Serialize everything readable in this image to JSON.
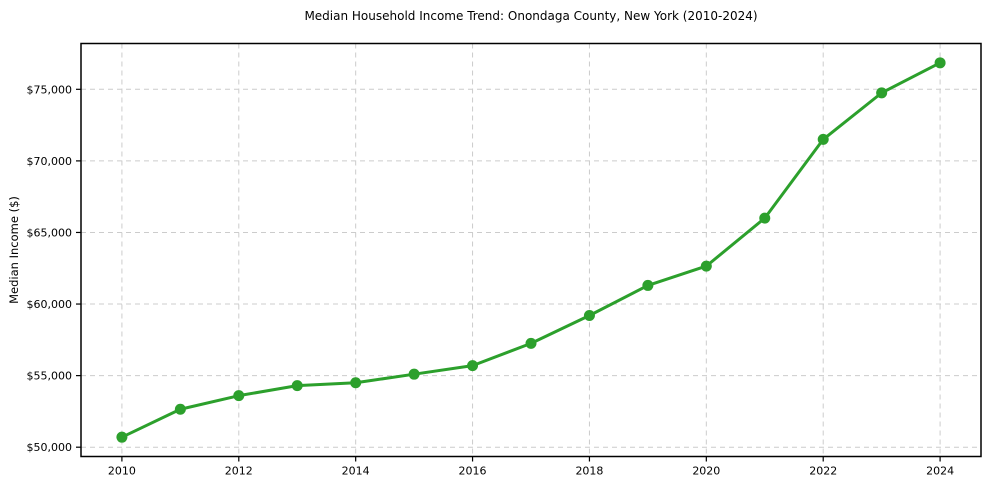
{
  "chart_data": {
    "type": "line",
    "title": "Median Household Income Trend: Onondaga County, New York (2010-2024)",
    "xlabel": "",
    "ylabel": "Median Income ($)",
    "x": [
      2010,
      2011,
      2012,
      2013,
      2014,
      2015,
      2016,
      2017,
      2018,
      2019,
      2020,
      2021,
      2022,
      2023,
      2024
    ],
    "series": [
      {
        "name": "Median Household Income",
        "values": [
          50700,
          52650,
          53600,
          54300,
          54500,
          55100,
          55700,
          57250,
          59200,
          61300,
          62650,
          66000,
          71500,
          74750,
          76850
        ]
      }
    ],
    "xlim": [
      2009.3,
      2024.7
    ],
    "ylim": [
      49350,
      78200
    ],
    "x_ticks": [
      2010,
      2012,
      2014,
      2016,
      2018,
      2020,
      2022,
      2024
    ],
    "x_tick_labels": [
      "2010",
      "2012",
      "2014",
      "2016",
      "2018",
      "2020",
      "2022",
      "2024"
    ],
    "y_ticks": [
      50000,
      55000,
      60000,
      65000,
      70000,
      75000
    ],
    "y_tick_labels": [
      "$50,000",
      "$55,000",
      "$60,000",
      "$65,000",
      "$70,000",
      "$75,000"
    ],
    "grid": true,
    "legend": "none",
    "line_color": "#2ca02c",
    "marker": "circle",
    "grid_color": "#cccccc",
    "spine_color": "#000000",
    "background_color": "#ffffff"
  }
}
